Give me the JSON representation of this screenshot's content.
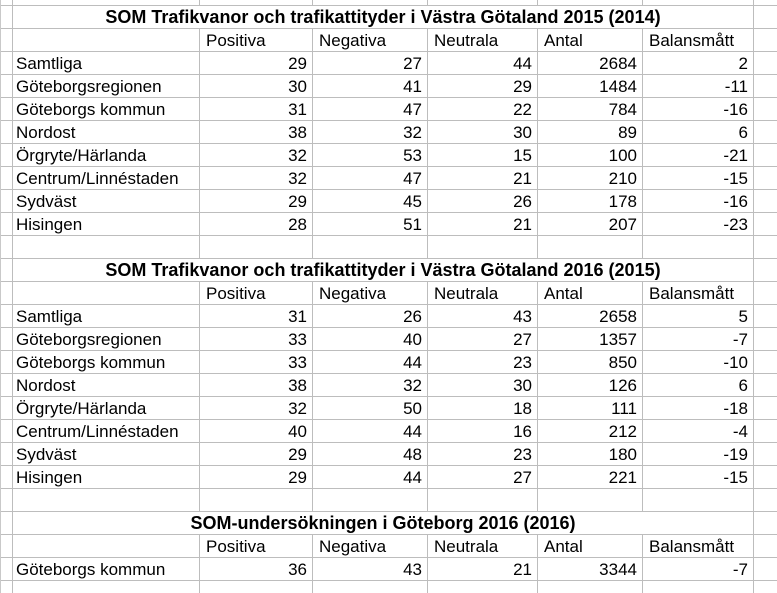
{
  "sheet": {
    "gridline_color": "#bdbdbd",
    "background_color": "#ffffff",
    "text_color": "#000000"
  },
  "columns": [
    "Positiva",
    "Negativa",
    "Neutrala",
    "Antal",
    "Balansmått"
  ],
  "tables": [
    {
      "title": "SOM Trafikvanor och trafikattityder i Västra Götaland 2015 (2014)",
      "rows": [
        {
          "label": "Samtliga",
          "values": [
            29,
            27,
            44,
            2684,
            2
          ]
        },
        {
          "label": "Göteborgsregionen",
          "values": [
            30,
            41,
            29,
            1484,
            -11
          ]
        },
        {
          "label": "Göteborgs kommun",
          "values": [
            31,
            47,
            22,
            784,
            -16
          ]
        },
        {
          "label": "Nordost",
          "values": [
            38,
            32,
            30,
            89,
            6
          ]
        },
        {
          "label": "Örgryte/Härlanda",
          "values": [
            32,
            53,
            15,
            100,
            -21
          ]
        },
        {
          "label": "Centrum/Linnéstaden",
          "values": [
            32,
            47,
            21,
            210,
            -15
          ]
        },
        {
          "label": "Sydväst",
          "values": [
            29,
            45,
            26,
            178,
            -16
          ]
        },
        {
          "label": "Hisingen",
          "values": [
            28,
            51,
            21,
            207,
            -23
          ]
        }
      ]
    },
    {
      "title": "SOM Trafikvanor och trafikattityder i Västra Götaland 2016 (2015)",
      "rows": [
        {
          "label": "Samtliga",
          "values": [
            31,
            26,
            43,
            2658,
            5
          ]
        },
        {
          "label": "Göteborgsregionen",
          "values": [
            33,
            40,
            27,
            1357,
            -7
          ]
        },
        {
          "label": "Göteborgs kommun",
          "values": [
            33,
            44,
            23,
            850,
            -10
          ]
        },
        {
          "label": "Nordost",
          "values": [
            38,
            32,
            30,
            126,
            6
          ]
        },
        {
          "label": "Örgryte/Härlanda",
          "values": [
            32,
            50,
            18,
            111,
            -18
          ]
        },
        {
          "label": "Centrum/Linnéstaden",
          "values": [
            40,
            44,
            16,
            212,
            -4
          ]
        },
        {
          "label": "Sydväst",
          "values": [
            29,
            48,
            23,
            180,
            -19
          ]
        },
        {
          "label": "Hisingen",
          "values": [
            29,
            44,
            27,
            221,
            -15
          ]
        }
      ]
    },
    {
      "title": "SOM-undersökningen i Göteborg 2016 (2016)",
      "rows": [
        {
          "label": "Göteborgs kommun",
          "values": [
            36,
            43,
            21,
            3344,
            -7
          ]
        }
      ]
    }
  ]
}
